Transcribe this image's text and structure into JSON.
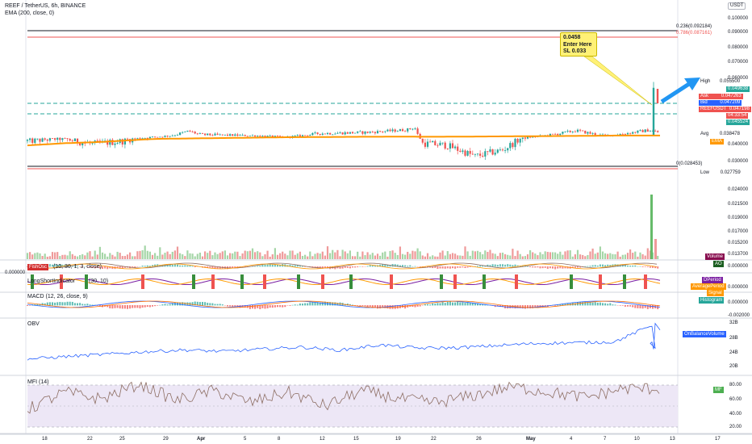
{
  "header": {
    "symbol_line": "REEF / TetherUS, 6h, BINANCE",
    "ema_line": "EMA (200, close, 0)",
    "currency": "USDT"
  },
  "annotation": {
    "line1": "0.0458",
    "line2": "Enter Here",
    "line3": "SL 0.033"
  },
  "fib": {
    "top_label": "0.236(0.092184)",
    "second_label": "0.786(0.087161)",
    "bottom_label": "0(0.028453)"
  },
  "price_axis": {
    "ticks": [
      "0.100000",
      "0.090000",
      "0.080000",
      "0.070000",
      "0.060000",
      "0.040000",
      "0.030000",
      "0.024000",
      "0.021500",
      "0.019000",
      "0.017000",
      "0.015200",
      "0.013700"
    ],
    "tags": [
      {
        "label": "High",
        "value": "0.055500",
        "color": "#ffffff",
        "text": "#131722"
      },
      {
        "label": "",
        "value": "0.049638",
        "color": "#26a69a",
        "text": "#ffffff"
      },
      {
        "label": "Ask",
        "value": "0.047263",
        "color": "#ef5350",
        "text": "#ffffff"
      },
      {
        "label": "Bid",
        "value": "0.047209",
        "color": "#2962ff",
        "text": "#ffffff"
      },
      {
        "label": "REEFUSDT",
        "value": "0.047198",
        "color": "#ef5350",
        "text": "#ffffff"
      },
      {
        "label": "",
        "value": "04:33:54",
        "color": "#ef5350",
        "text": "#ffffff"
      },
      {
        "label": "",
        "value": "0.045524",
        "color": "#26a69a",
        "text": "#ffffff"
      },
      {
        "label": "Avg",
        "value": "0.038478",
        "color": "#ffffff",
        "text": "#131722"
      },
      {
        "label": "EMA",
        "value": "",
        "color": "#ff9800",
        "text": "#ffffff"
      },
      {
        "label": "Low",
        "value": "0.027759",
        "color": "#ffffff",
        "text": "#131722"
      }
    ]
  },
  "indicators": {
    "volume": "Volume",
    "ao_title": "AO",
    "ao_value": "0.000000",
    "fisher_title": "FishOsc",
    "fisher_params": "(10, 30, 1, 3, close)",
    "longshort_title": "LongShortIndicator",
    "longshort_params": "(30, 10)",
    "dperiod": "DPeriod",
    "avgperiod": "AveragePeriod",
    "signal": "Signal",
    "macd_title": "MACD (12, 26, close, 9)",
    "histogram": "Histogram",
    "macd_values": [
      "0.000000",
      "0.000000",
      "0.000000",
      "-0.002000"
    ],
    "obv_title": "OBV",
    "obv_label": "OnBalanceVolume",
    "obv_ticks": [
      "32B",
      "28B",
      "24B",
      "20B"
    ],
    "mfi_title": "MFI (14)",
    "mfi_label": "MF",
    "mfi_ticks": [
      "80.00",
      "60.00",
      "40.00",
      "20.00"
    ]
  },
  "x_axis": [
    "18",
    "22",
    "25",
    "29",
    "Apr",
    "5",
    "8",
    "12",
    "15",
    "19",
    "22",
    "26",
    "May",
    "4",
    "7",
    "10",
    "13",
    "17"
  ],
  "colors": {
    "up": "#26a69a",
    "down": "#ef5350",
    "ema": "#ff9800",
    "obv": "#2962ff",
    "mfi": "#8d6e63",
    "mfi_band": "#ede7f6",
    "note": "#fff176",
    "arrow": "#2196f3"
  },
  "chart_data": [
    {
      "type": "candlestick",
      "title": "REEF / TetherUS, 6h, BINANCE",
      "x": [
        "18",
        "22",
        "25",
        "29",
        "Apr",
        "5",
        "8",
        "12",
        "15",
        "19",
        "22",
        "26",
        "May",
        "4",
        "7",
        "10",
        "13",
        "17"
      ],
      "series": [
        {
          "name": "Price",
          "values": [
            0.0345,
            0.0352,
            0.0338,
            0.0405,
            0.0382,
            0.0378,
            0.0365,
            0.0392,
            0.0398,
            0.0412,
            0.0335,
            0.0325,
            0.0362,
            0.0408,
            0.0392,
            0.0405,
            0.0472,
            0.0472
          ]
        },
        {
          "name": "EMA",
          "values": [
            0.0335,
            0.034,
            0.0343,
            0.0348,
            0.0352,
            0.0356,
            0.036,
            0.0364,
            0.0366,
            0.0368,
            0.0369,
            0.0368,
            0.037,
            0.0372,
            0.0374,
            0.0376,
            0.0379,
            0.0379
          ]
        }
      ],
      "ylim": [
        0.0277,
        0.1
      ],
      "grid": false
    },
    {
      "type": "bar",
      "title": "Volume",
      "x": [
        "18",
        "22",
        "25",
        "29",
        "Apr",
        "5",
        "8",
        "12",
        "15",
        "19",
        "22",
        "26",
        "May",
        "4",
        "7",
        "10",
        "13",
        "17"
      ],
      "values": [
        3.5,
        3.2,
        3.0,
        4.4,
        3.0,
        2.8,
        3.6,
        3.2,
        3.3,
        4.8,
        3.5,
        3.3,
        3.0,
        3.6,
        3.3,
        4.1,
        24.0,
        24.0
      ]
    },
    {
      "type": "line",
      "title": "OBV",
      "x": [
        "18",
        "22",
        "25",
        "29",
        "Apr",
        "5",
        "8",
        "12",
        "15",
        "19",
        "22",
        "26",
        "May",
        "4",
        "7",
        "10",
        "13",
        "17"
      ],
      "series": [
        {
          "name": "OnBalanceVolume",
          "values": [
            22.5,
            23.2,
            23.8,
            24.5,
            25.0,
            24.6,
            25.2,
            25.8,
            24.9,
            26.4,
            25.5,
            25.6,
            26.2,
            26.8,
            27.0,
            27.2,
            32.0,
            30.5
          ]
        }
      ],
      "ylim": [
        20,
        32
      ]
    },
    {
      "type": "line",
      "title": "MFI (14)",
      "x": [
        "18",
        "22",
        "25",
        "29",
        "Apr",
        "5",
        "8",
        "12",
        "15",
        "19",
        "22",
        "26",
        "May",
        "4",
        "7",
        "10",
        "13",
        "17"
      ],
      "series": [
        {
          "name": "MF",
          "values": [
            45,
            70,
            60,
            82,
            58,
            72,
            55,
            70,
            50,
            72,
            60,
            55,
            65,
            78,
            70,
            62,
            75,
            75
          ]
        }
      ],
      "ylim": [
        20,
        80
      ]
    }
  ]
}
